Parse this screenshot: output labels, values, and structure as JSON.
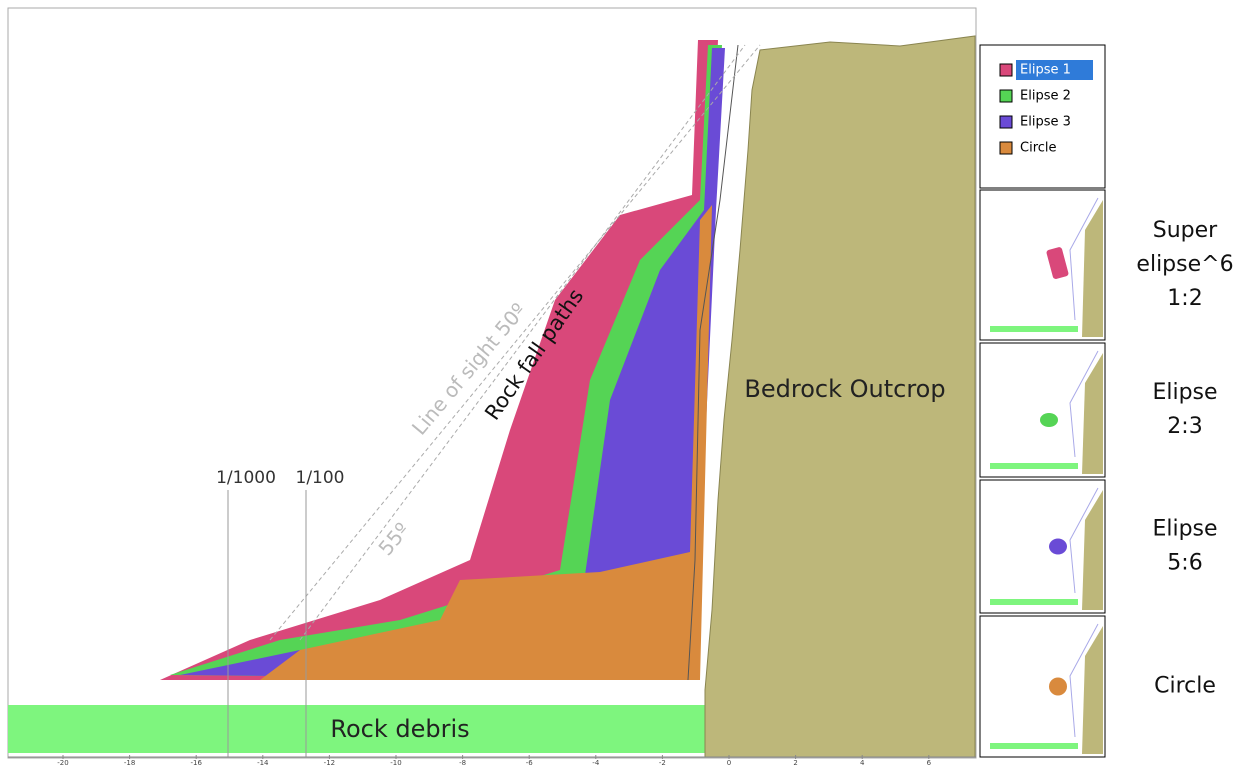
{
  "legend": [
    {
      "label": "Elipse 1",
      "color": "#d9487a"
    },
    {
      "label": "Elipse 2",
      "color": "#55d455"
    },
    {
      "label": "Elipse 3",
      "color": "#6a4bd6"
    },
    {
      "label": "Circle",
      "color": "#d98a3d"
    }
  ],
  "annotations": {
    "line_of_sight": "Line of sight 50º",
    "angle_55": "55º",
    "rock_fall_paths": "Rock fall paths",
    "bedrock": "Bedrock Outcrop",
    "debris": "Rock debris",
    "p1000": "1/1000",
    "p100": "1/100"
  },
  "shapes": [
    {
      "lines": [
        "Super",
        "elipse^6",
        "1:2"
      ]
    },
    {
      "lines": [
        "Elipse",
        "2:3"
      ]
    },
    {
      "lines": [
        "Elipse",
        "5:6"
      ]
    },
    {
      "lines": [
        "Circle"
      ]
    }
  ],
  "x_axis_ticks": [
    -20,
    -18,
    -16,
    -14,
    -12,
    -10,
    -8,
    -6,
    -4,
    -2,
    0,
    2,
    4,
    6
  ]
}
